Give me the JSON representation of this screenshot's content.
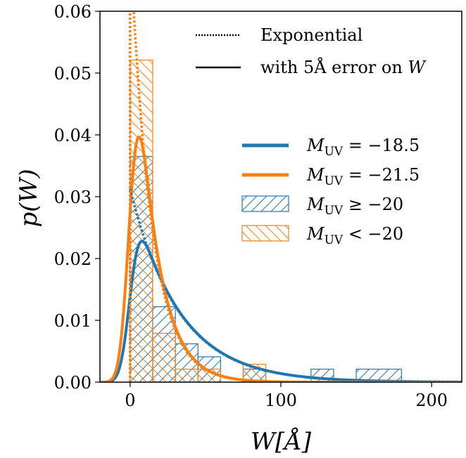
{
  "chart_data": {
    "type": "histogram+line",
    "xlabel": "W[Å]",
    "ylabel": "p(W)",
    "xlim": [
      -20,
      220
    ],
    "ylim": [
      0,
      0.06
    ],
    "xticks": [
      {
        "v": 0,
        "label": "0"
      },
      {
        "v": 100,
        "label": "100"
      },
      {
        "v": 200,
        "label": "200"
      }
    ],
    "yticks": [
      {
        "v": 0,
        "label": "0.00"
      },
      {
        "v": 0.01,
        "label": "0.01"
      },
      {
        "v": 0.02,
        "label": "0.02"
      },
      {
        "v": 0.03,
        "label": "0.03"
      },
      {
        "v": 0.04,
        "label": "0.04"
      },
      {
        "v": 0.05,
        "label": "0.05"
      },
      {
        "v": 0.06,
        "label": "0.06"
      }
    ],
    "colors": {
      "blue": "#1f77b4",
      "orange": "#ff7f0e"
    },
    "histograms": [
      {
        "name": "M_UV ≥ −20",
        "color": "#1f77b4",
        "hatch": "forward",
        "bins": [
          {
            "x0": 0,
            "x1": 15,
            "h": 0.0365
          },
          {
            "x0": 15,
            "x1": 30,
            "h": 0.0122
          },
          {
            "x0": 30,
            "x1": 45,
            "h": 0.0062
          },
          {
            "x0": 45,
            "x1": 60,
            "h": 0.0041
          },
          {
            "x0": 75,
            "x1": 90,
            "h": 0.0021
          },
          {
            "x0": 120,
            "x1": 135,
            "h": 0.0021
          },
          {
            "x0": 150,
            "x1": 180,
            "h": 0.0021
          }
        ]
      },
      {
        "name": "M_UV < −20",
        "color": "#ff7f0e",
        "hatch": "backward",
        "bins": [
          {
            "x0": 0,
            "x1": 15,
            "h": 0.0521
          },
          {
            "x0": 15,
            "x1": 30,
            "h": 0.0079
          },
          {
            "x0": 30,
            "x1": 45,
            "h": 0.0021
          },
          {
            "x0": 45,
            "x1": 60,
            "h": 0.0021
          },
          {
            "x0": 75,
            "x1": 90,
            "h": 0.0029
          }
        ]
      }
    ],
    "series": [
      {
        "name": "M_UV = −18.5",
        "color": "#1f77b4",
        "scale": 32,
        "kind": "convolved"
      },
      {
        "name": "M_UV = −21.5",
        "color": "#ff7f0e",
        "scale": 14,
        "kind": "convolved"
      },
      {
        "name": "Exponential −18.5",
        "color": "#1f77b4",
        "scale": 32,
        "kind": "exponential"
      },
      {
        "name": "Exponential −21.5",
        "color": "#ff7f0e",
        "scale": 14,
        "kind": "exponential"
      }
    ],
    "error_sigma": 5,
    "legend_top": {
      "position": "top-right",
      "entries": [
        {
          "style": "dotted",
          "label": "Exponential"
        },
        {
          "style": "solid",
          "label_prefix": "with 5Å error on ",
          "label_var": "W"
        }
      ]
    },
    "legend_main": {
      "position": "center-right",
      "entries": [
        {
          "kind": "line",
          "color": "#1f77b4",
          "sym": "M",
          "sub": "UV",
          "rel": "= −18.5"
        },
        {
          "kind": "line",
          "color": "#ff7f0e",
          "sym": "M",
          "sub": "UV",
          "rel": "= −21.5"
        },
        {
          "kind": "hatch-forward",
          "color": "#1f77b4",
          "sym": "M",
          "sub": "UV",
          "rel": "≥ −20"
        },
        {
          "kind": "hatch-backward",
          "color": "#ff7f0e",
          "sym": "M",
          "sub": "UV",
          "rel": "< −20"
        }
      ]
    }
  }
}
